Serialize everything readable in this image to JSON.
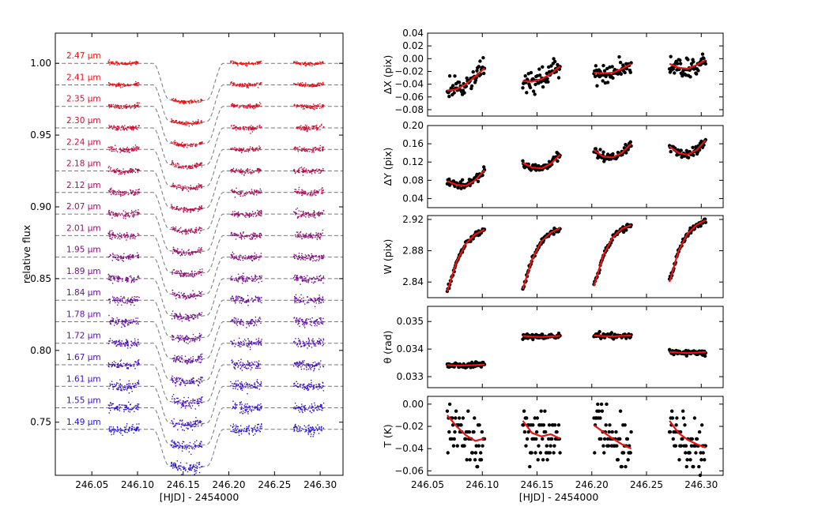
{
  "figure": {
    "left_xlabel": "[HJD] - 2454000",
    "right_xlabel": "[HJD] - 2454000"
  },
  "chart_data": [
    {
      "type": "scatter",
      "panel": "spectroscopic-light-curves",
      "title": "",
      "xlabel": "[HJD] - 2454000",
      "ylabel": "relative flux",
      "xlim": [
        246.01,
        246.325
      ],
      "ylim": [
        0.713,
        1.021
      ],
      "xticks": [
        246.05,
        246.1,
        246.15,
        246.2,
        246.25,
        246.3
      ],
      "xtick_labels": [
        "246.05",
        "246.10",
        "246.15",
        "246.20",
        "246.25",
        "246.30"
      ],
      "yticks": [
        0.75,
        0.8,
        0.85,
        0.9,
        0.95,
        1.0
      ],
      "ytick_labels": [
        "0.75",
        "0.80",
        "0.85",
        "0.90",
        "0.95",
        "1.00"
      ],
      "observation_windows": [
        [
          246.068,
          246.102
        ],
        [
          246.137,
          246.171
        ],
        [
          246.202,
          246.236
        ],
        [
          246.271,
          246.304
        ]
      ],
      "transit": {
        "ingress_start": 246.117,
        "ingress_end": 246.135,
        "egress_start": 246.176,
        "egress_end": 246.194,
        "depth": 0.0255
      },
      "marker_colors": [
        "#ee1111",
        "#2211dd"
      ],
      "series": [
        {
          "label": "2.47 μm",
          "wavelength": 2.47,
          "baseline": 1.0
        },
        {
          "label": "2.41 μm",
          "wavelength": 2.41,
          "baseline": 0.985
        },
        {
          "label": "2.35 μm",
          "wavelength": 2.35,
          "baseline": 0.97
        },
        {
          "label": "2.30 μm",
          "wavelength": 2.3,
          "baseline": 0.955
        },
        {
          "label": "2.24 μm",
          "wavelength": 2.24,
          "baseline": 0.94
        },
        {
          "label": "2.18 μm",
          "wavelength": 2.18,
          "baseline": 0.925
        },
        {
          "label": "2.12 μm",
          "wavelength": 2.12,
          "baseline": 0.91
        },
        {
          "label": "2.07 μm",
          "wavelength": 2.07,
          "baseline": 0.895
        },
        {
          "label": "2.01 μm",
          "wavelength": 2.01,
          "baseline": 0.88
        },
        {
          "label": "1.95 μm",
          "wavelength": 1.95,
          "baseline": 0.865
        },
        {
          "label": "1.89 μm",
          "wavelength": 1.89,
          "baseline": 0.85
        },
        {
          "label": "1.84 μm",
          "wavelength": 1.84,
          "baseline": 0.835
        },
        {
          "label": "1.78 μm",
          "wavelength": 1.78,
          "baseline": 0.82
        },
        {
          "label": "1.72 μm",
          "wavelength": 1.72,
          "baseline": 0.805
        },
        {
          "label": "1.67 μm",
          "wavelength": 1.67,
          "baseline": 0.79
        },
        {
          "label": "1.61 μm",
          "wavelength": 1.61,
          "baseline": 0.775
        },
        {
          "label": "1.55 μm",
          "wavelength": 1.55,
          "baseline": 0.76
        },
        {
          "label": "1.49 μm",
          "wavelength": 1.49,
          "baseline": 0.745
        }
      ]
    },
    {
      "type": "scatter",
      "panel": "dx",
      "ylabel": "ΔX (pix)",
      "xlim": [
        246.05,
        246.32
      ],
      "ylim": [
        -0.09,
        0.04
      ],
      "yticks": [
        0.04,
        0.02,
        0.0,
        -0.02,
        -0.04,
        -0.06,
        -0.08
      ],
      "ytick_labels": [
        "0.04",
        "0.02",
        "0.00",
        "−0.02",
        "−0.04",
        "−0.06",
        "−0.08"
      ],
      "xticks": [
        246.05,
        246.1,
        246.15,
        246.2,
        246.25,
        246.3
      ],
      "xtick_labels": [],
      "fit_color": "#ee1111",
      "segments": [
        {
          "x": [
            246.068,
            246.102
          ],
          "fit": [
            -0.05,
            -0.048,
            -0.04,
            -0.028,
            -0.015
          ],
          "scatter": 0.008
        },
        {
          "x": [
            246.137,
            246.171
          ],
          "fit": [
            -0.035,
            -0.036,
            -0.032,
            -0.024,
            -0.012
          ],
          "scatter": 0.008
        },
        {
          "x": [
            246.202,
            246.236
          ],
          "fit": [
            -0.022,
            -0.023,
            -0.022,
            -0.016,
            -0.008
          ],
          "scatter": 0.007
        },
        {
          "x": [
            246.271,
            246.304
          ],
          "fit": [
            -0.008,
            -0.014,
            -0.016,
            -0.01,
            -0.002
          ],
          "scatter": 0.007
        }
      ]
    },
    {
      "type": "scatter",
      "panel": "dy",
      "ylabel": "ΔY (pix)",
      "xlim": [
        246.05,
        246.32
      ],
      "ylim": [
        0.02,
        0.2
      ],
      "yticks": [
        0.2,
        0.16,
        0.12,
        0.08,
        0.04
      ],
      "ytick_labels": [
        "0.20",
        "0.16",
        "0.12",
        "0.08",
        "0.04"
      ],
      "xticks": [
        246.05,
        246.1,
        246.15,
        246.2,
        246.25,
        246.3
      ],
      "xtick_labels": [],
      "fit_color": "#ee1111",
      "segments": [
        {
          "x": [
            246.068,
            246.102
          ],
          "fit": [
            0.078,
            0.07,
            0.068,
            0.08,
            0.102
          ],
          "scatter": 0.005
        },
        {
          "x": [
            246.137,
            246.171
          ],
          "fit": [
            0.118,
            0.108,
            0.106,
            0.116,
            0.136
          ],
          "scatter": 0.005
        },
        {
          "x": [
            246.202,
            246.236
          ],
          "fit": [
            0.146,
            0.132,
            0.13,
            0.14,
            0.16
          ],
          "scatter": 0.005
        },
        {
          "x": [
            246.271,
            246.304
          ],
          "fit": [
            0.154,
            0.14,
            0.136,
            0.146,
            0.168
          ],
          "scatter": 0.005
        }
      ]
    },
    {
      "type": "scatter",
      "panel": "width",
      "ylabel": "W (pix)",
      "xlim": [
        246.05,
        246.32
      ],
      "ylim": [
        2.82,
        2.925
      ],
      "yticks": [
        2.92,
        2.88,
        2.84
      ],
      "ytick_labels": [
        "2.92",
        "2.88",
        "2.84"
      ],
      "xticks": [
        246.05,
        246.1,
        246.15,
        246.2,
        246.25,
        246.3
      ],
      "xtick_labels": [],
      "fit_color": "#ee1111",
      "segments": [
        {
          "x": [
            246.068,
            246.102
          ],
          "fit": [
            2.828,
            2.866,
            2.889,
            2.901,
            2.907
          ],
          "scatter": 0.002
        },
        {
          "x": [
            246.137,
            246.171
          ],
          "fit": [
            2.831,
            2.869,
            2.892,
            2.903,
            2.909
          ],
          "scatter": 0.002
        },
        {
          "x": [
            246.202,
            246.236
          ],
          "fit": [
            2.835,
            2.874,
            2.897,
            2.908,
            2.913
          ],
          "scatter": 0.002
        },
        {
          "x": [
            246.271,
            246.304
          ],
          "fit": [
            2.84,
            2.88,
            2.902,
            2.913,
            2.919
          ],
          "scatter": 0.002
        }
      ]
    },
    {
      "type": "scatter",
      "panel": "theta",
      "ylabel": "θ (rad)",
      "xlim": [
        246.05,
        246.32
      ],
      "ylim": [
        0.0326,
        0.03555
      ],
      "yticks": [
        0.035,
        0.034,
        0.033
      ],
      "ytick_labels": [
        "0.035",
        "0.034",
        "0.033"
      ],
      "xticks": [
        246.05,
        246.1,
        246.15,
        246.2,
        246.25,
        246.3
      ],
      "xtick_labels": [],
      "fit_color": "#ee1111",
      "segments": [
        {
          "x": [
            246.068,
            246.102
          ],
          "fit": [
            0.03342,
            0.0334,
            0.03341,
            0.03342,
            0.03344
          ],
          "scatter": 5e-05
        },
        {
          "x": [
            246.137,
            246.171
          ],
          "fit": [
            0.03448,
            0.03445,
            0.03444,
            0.03446,
            0.03448
          ],
          "scatter": 5e-05
        },
        {
          "x": [
            246.202,
            246.236
          ],
          "fit": [
            0.0345,
            0.03447,
            0.03446,
            0.03448,
            0.03449
          ],
          "scatter": 5e-05
        },
        {
          "x": [
            246.271,
            246.304
          ],
          "fit": [
            0.0339,
            0.03387,
            0.03386,
            0.03387,
            0.03389
          ],
          "scatter": 5e-05
        }
      ]
    },
    {
      "type": "scatter",
      "panel": "temperature",
      "ylabel": "T (K)",
      "xlabel": "[HJD] - 2454000",
      "xlim": [
        246.05,
        246.32
      ],
      "ylim": [
        -0.064,
        0.007
      ],
      "yticks": [
        0.0,
        -0.02,
        -0.04,
        -0.06
      ],
      "ytick_labels": [
        "0.00",
        "−0.02",
        "−0.04",
        "−0.06"
      ],
      "xticks": [
        246.05,
        246.1,
        246.15,
        246.2,
        246.25,
        246.3
      ],
      "xtick_labels": [
        "246.05",
        "246.10",
        "246.15",
        "246.20",
        "246.25",
        "246.30"
      ],
      "fit_color": "#ee1111",
      "quantization": 0.00625,
      "segments": [
        {
          "x": [
            246.068,
            246.102
          ],
          "fit": [
            -0.01,
            -0.02,
            -0.028,
            -0.033,
            -0.031
          ],
          "scatter": 0.012
        },
        {
          "x": [
            246.137,
            246.171
          ],
          "fit": [
            -0.015,
            -0.026,
            -0.029,
            -0.027,
            -0.031
          ],
          "scatter": 0.012
        },
        {
          "x": [
            246.202,
            246.236
          ],
          "fit": [
            -0.019,
            -0.025,
            -0.031,
            -0.036,
            -0.04
          ],
          "scatter": 0.012
        },
        {
          "x": [
            246.271,
            246.304
          ],
          "fit": [
            -0.015,
            -0.026,
            -0.032,
            -0.036,
            -0.039
          ],
          "scatter": 0.012
        }
      ]
    }
  ]
}
